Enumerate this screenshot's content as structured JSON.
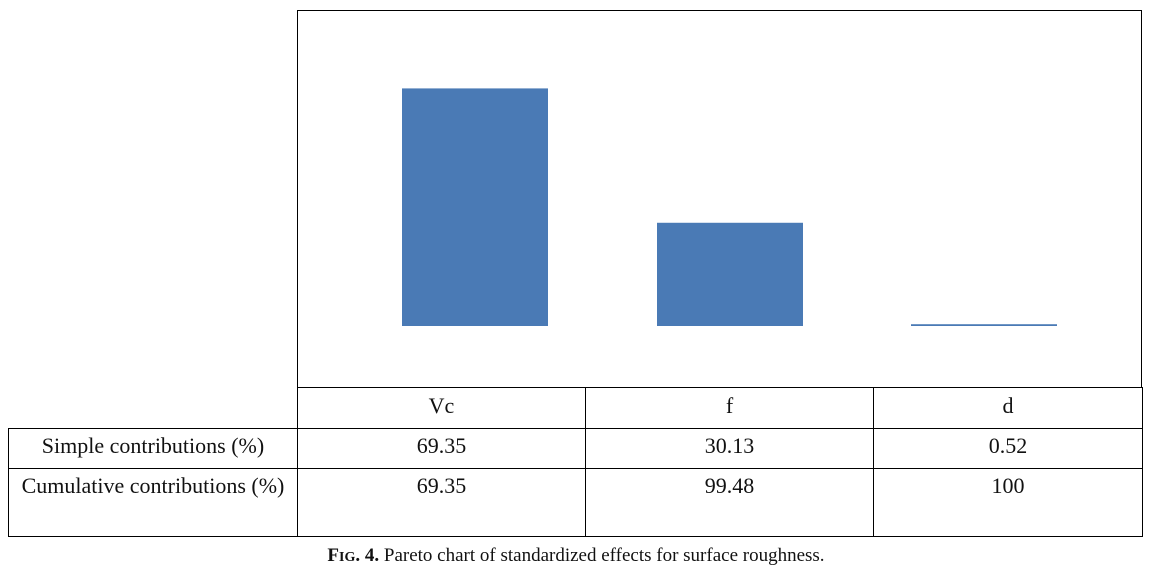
{
  "chart_data": {
    "type": "bar",
    "categories": [
      "Vc",
      "f",
      "d"
    ],
    "values": [
      69.35,
      30.13,
      0.52
    ],
    "bar_color": "#4a7ab5",
    "ylim": [
      0,
      100
    ],
    "axes_visible": false,
    "table": {
      "columns": [
        "Vc",
        "f",
        "d"
      ],
      "rows": [
        {
          "label": "Simple contributions (%)",
          "values": [
            "69.35",
            "30.13",
            "0.52"
          ]
        },
        {
          "label": "Cumulative contributions (%)",
          "values": [
            "69.35",
            "99.48",
            "100"
          ]
        }
      ]
    }
  },
  "caption": {
    "label_initial": "F",
    "label_rest": "IG",
    "label_number": ". 4.",
    "text": " Pareto chart of standardized effects for surface roughness."
  }
}
